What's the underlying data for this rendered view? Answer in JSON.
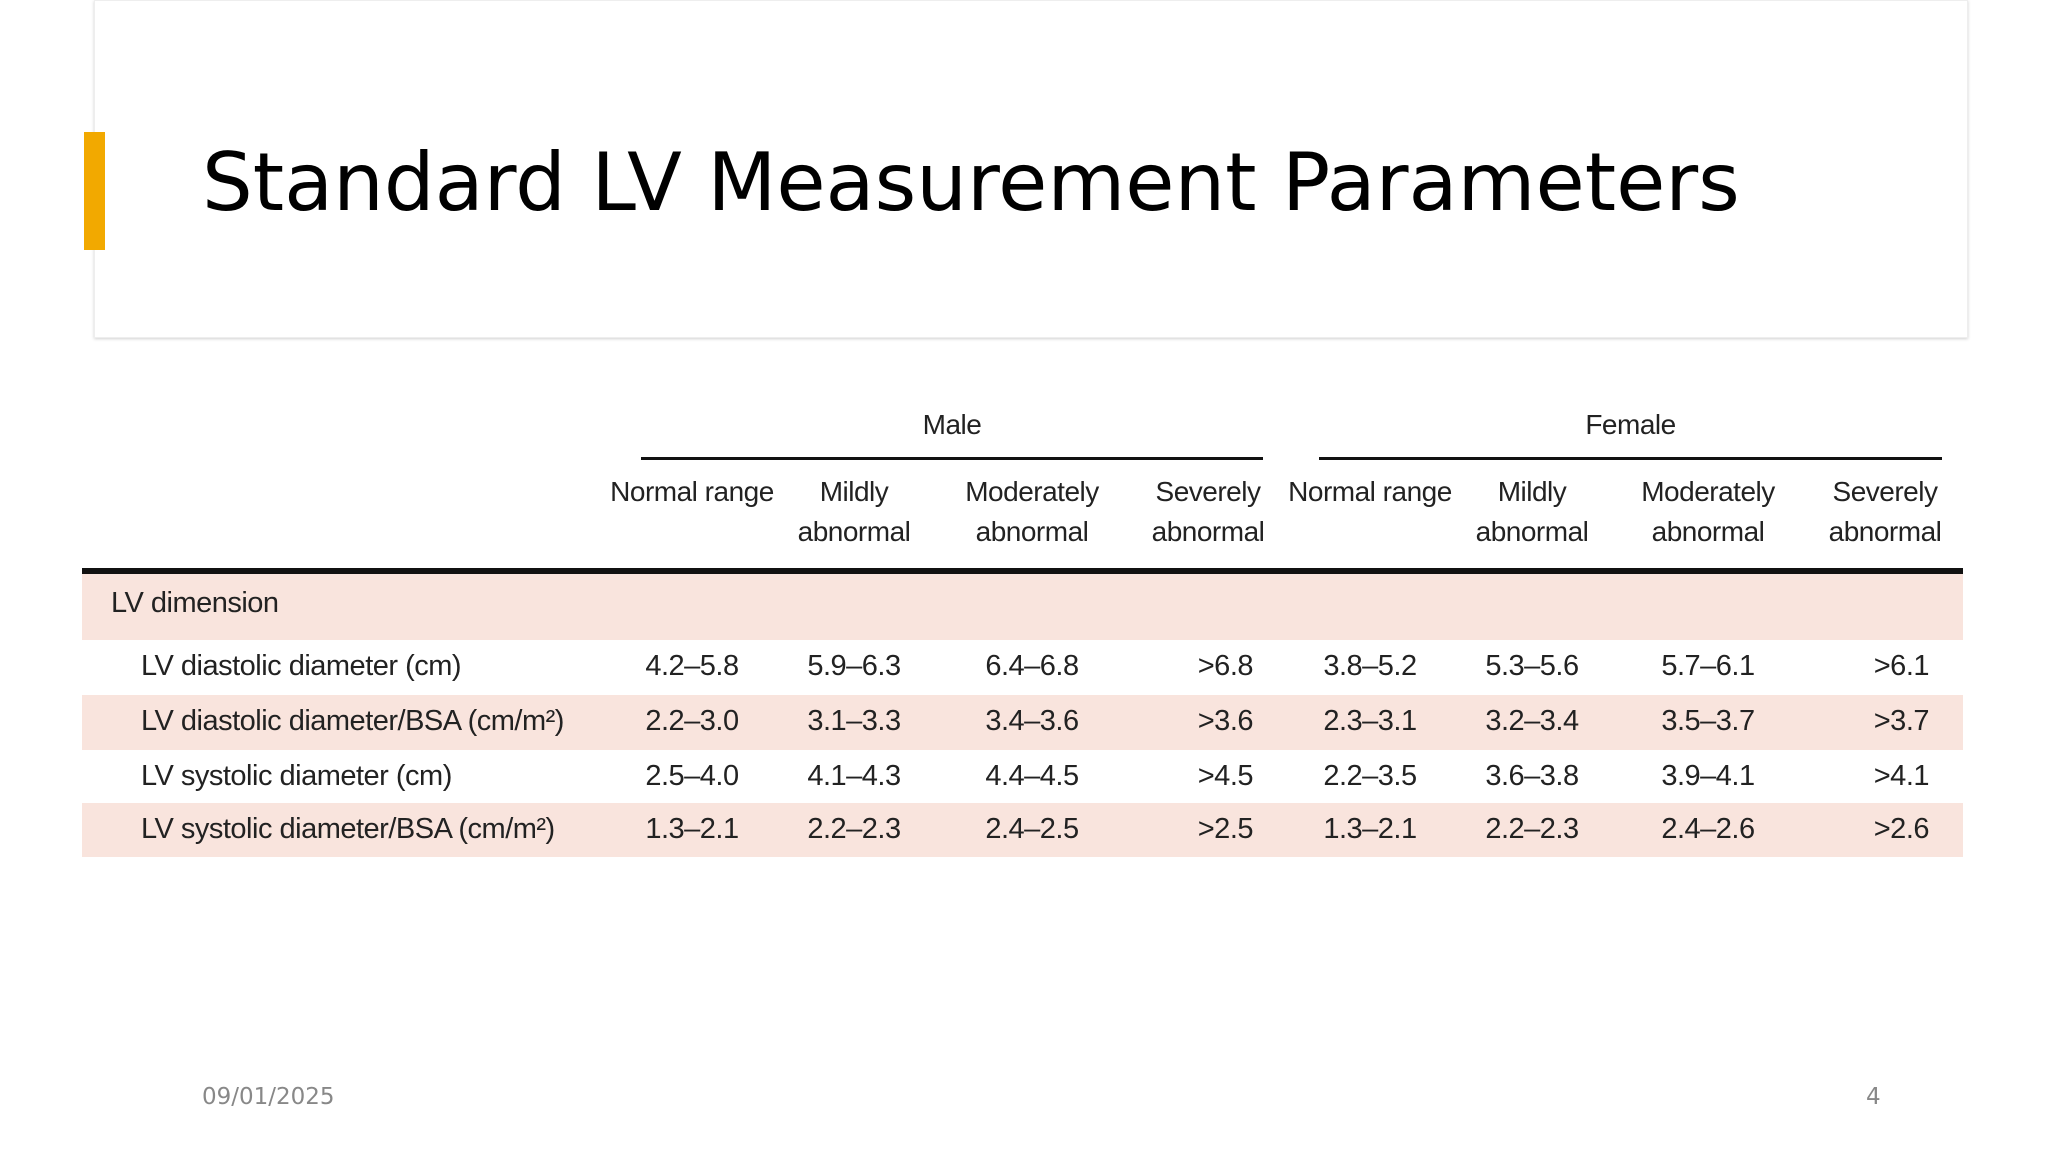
{
  "header": {
    "title": "Standard LV Measurement Parameters"
  },
  "table": {
    "groups": [
      "Male",
      "Female"
    ],
    "columns": [
      "Normal range",
      "Mildly abnormal",
      "Moderately abnormal",
      "Severely abnormal",
      "Normal range",
      "Mildly abnormal",
      "Moderately abnormal",
      "Severely abnormal"
    ],
    "section": "LV dimension",
    "rows": [
      {
        "label": "LV diastolic diameter (cm)",
        "cells": [
          "4.2–5.8",
          "5.9–6.3",
          "6.4–6.8",
          ">6.8",
          "3.8–5.2",
          "5.3–5.6",
          "5.7–6.1",
          ">6.1"
        ]
      },
      {
        "label": "LV diastolic diameter/BSA (cm/m²)",
        "cells": [
          "2.2–3.0",
          "3.1–3.3",
          "3.4–3.6",
          ">3.6",
          "2.3–3.1",
          "3.2–3.4",
          "3.5–3.7",
          ">3.7"
        ]
      },
      {
        "label": "LV systolic diameter (cm)",
        "cells": [
          "2.5–4.0",
          "4.1–4.3",
          "4.4–4.5",
          ">4.5",
          "2.2–3.5",
          "3.6–3.8",
          "3.9–4.1",
          ">4.1"
        ]
      },
      {
        "label": "LV systolic diameter/BSA (cm/m²)",
        "cells": [
          "1.3–2.1",
          "2.2–2.3",
          "2.4–2.5",
          ">2.5",
          "1.3–2.1",
          "2.2–2.3",
          "2.4–2.6",
          ">2.6"
        ]
      }
    ]
  },
  "footer": {
    "date": "09/01/2025",
    "page": "4"
  }
}
